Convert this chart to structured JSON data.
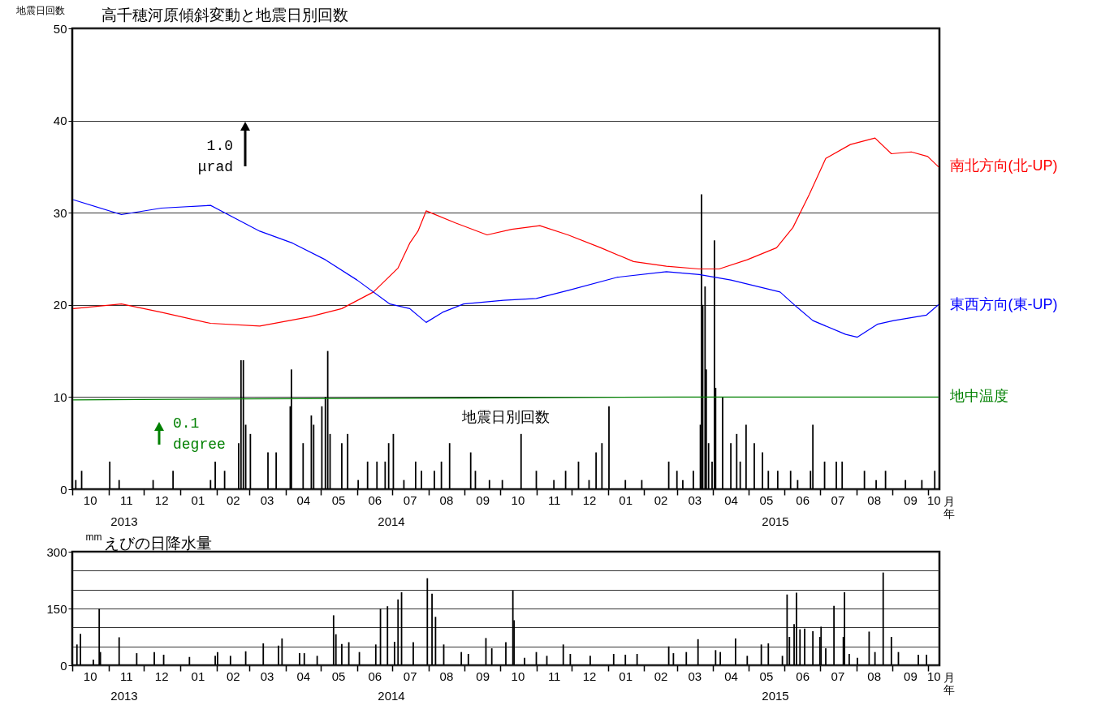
{
  "chart_data": [
    {
      "type": "line",
      "title": "高千穂河原傾斜変動と地震日別回数",
      "ylabel": "地震日回数",
      "xlabel": "月年",
      "xlim": [
        "2013-10-01",
        "2015-10-11"
      ],
      "xticks": [
        {
          "value": "2013-10-01",
          "label": null
        },
        {
          "value": "2013-11-01",
          "label": null
        },
        {
          "value": "2013-12-01",
          "label": null
        },
        {
          "value": "2014-01-01",
          "label": null
        },
        {
          "value": "2014-02-01",
          "label": null
        },
        {
          "value": "2014-03-01",
          "label": null
        },
        {
          "value": "2014-04-01",
          "label": null
        },
        {
          "value": "2014-05-01",
          "label": null
        },
        {
          "value": "2014-06-01",
          "label": null
        },
        {
          "value": "2014-07-01",
          "label": null
        },
        {
          "value": "2014-08-01",
          "label": null
        },
        {
          "value": "2014-09-01",
          "label": null
        },
        {
          "value": "2014-10-01",
          "label": null
        },
        {
          "value": "2014-11-01",
          "label": null
        },
        {
          "value": "2014-12-01",
          "label": null
        },
        {
          "value": "2015-01-01",
          "label": null
        },
        {
          "value": "2015-02-01",
          "label": null
        },
        {
          "value": "2015-03-01",
          "label": null
        },
        {
          "value": "2015-04-01",
          "label": null
        },
        {
          "value": "2015-05-01",
          "label": null
        },
        {
          "value": "2015-06-01",
          "label": null
        },
        {
          "value": "2015-07-01",
          "label": null
        },
        {
          "value": "2015-08-01",
          "label": null
        },
        {
          "value": "2015-09-01",
          "label": null
        },
        {
          "value": "2015-10-01",
          "label": null
        },
        {
          "value": "2013-10-16",
          "label": "10"
        },
        {
          "value": "2013-11-16",
          "label": "11"
        },
        {
          "value": "2013-12-16",
          "label": "12"
        },
        {
          "value": "2014-01-16",
          "label": "01"
        },
        {
          "value": "2014-02-15",
          "label": "02"
        },
        {
          "value": "2014-03-16",
          "label": "03"
        },
        {
          "value": "2014-04-16",
          "label": "04"
        },
        {
          "value": "2014-05-16",
          "label": "05"
        },
        {
          "value": "2014-06-16",
          "label": "06"
        },
        {
          "value": "2014-07-16",
          "label": "07"
        },
        {
          "value": "2014-08-16",
          "label": "08"
        },
        {
          "value": "2014-09-16",
          "label": "09"
        },
        {
          "value": "2014-10-16",
          "label": "10"
        },
        {
          "value": "2014-11-16",
          "label": "11"
        },
        {
          "value": "2014-12-16",
          "label": "12"
        },
        {
          "value": "2015-01-16",
          "label": "01"
        },
        {
          "value": "2015-02-15",
          "label": "02"
        },
        {
          "value": "2015-03-16",
          "label": "03"
        },
        {
          "value": "2015-04-16",
          "label": "04"
        },
        {
          "value": "2015-05-16",
          "label": "05"
        },
        {
          "value": "2015-06-16",
          "label": "06"
        },
        {
          "value": "2015-07-16",
          "label": "07"
        },
        {
          "value": "2015-08-16",
          "label": "08"
        },
        {
          "value": "2015-09-16",
          "label": "09"
        },
        {
          "value": "2015-10-06",
          "label": "10"
        }
      ],
      "ylim": [
        0,
        50
      ],
      "yticks": [
        0,
        10,
        20,
        30,
        40,
        50
      ],
      "grid": "y",
      "series": [
        {
          "type": "bar",
          "name": "地震日別回数",
          "color": "#000000",
          "x": [
            "2013-10-04",
            "2013-10-09",
            "2013-11-02",
            "2013-11-10",
            "2013-12-09",
            "2013-12-26",
            "2014-01-27",
            "2014-01-31",
            "2014-02-08",
            "2014-02-20",
            "2014-02-22",
            "2014-02-24",
            "2014-02-26",
            "2014-03-02",
            "2014-03-17",
            "2014-03-24",
            "2014-04-05",
            "2014-04-06",
            "2014-04-16",
            "2014-04-23",
            "2014-04-25",
            "2014-05-02",
            "2014-05-05",
            "2014-05-07",
            "2014-05-09",
            "2014-05-19",
            "2014-05-24",
            "2014-06-02",
            "2014-06-10",
            "2014-06-18",
            "2014-06-25",
            "2014-06-28",
            "2014-07-02",
            "2014-07-11",
            "2014-07-21",
            "2014-07-26",
            "2014-08-06",
            "2014-08-12",
            "2014-08-19",
            "2014-09-06",
            "2014-09-10",
            "2014-09-22",
            "2014-10-03",
            "2014-10-19",
            "2014-11-01",
            "2014-11-16",
            "2014-11-26",
            "2014-12-07",
            "2014-12-16",
            "2014-12-22",
            "2014-12-27",
            "2015-01-02",
            "2015-01-16",
            "2015-01-30",
            "2015-02-22",
            "2015-03-01",
            "2015-03-06",
            "2015-03-15",
            "2015-03-21",
            "2015-03-22",
            "2015-03-23",
            "2015-03-25",
            "2015-03-26",
            "2015-03-28",
            "2015-03-31",
            "2015-04-02",
            "2015-04-03",
            "2015-04-09",
            "2015-04-16",
            "2015-04-21",
            "2015-04-24",
            "2015-04-29",
            "2015-05-06",
            "2015-05-13",
            "2015-05-18",
            "2015-05-26",
            "2015-06-06",
            "2015-06-12",
            "2015-06-23",
            "2015-06-25",
            "2015-07-05",
            "2015-07-15",
            "2015-07-20",
            "2015-08-08",
            "2015-08-18",
            "2015-08-26",
            "2015-09-12",
            "2015-09-26",
            "2015-10-07"
          ],
          "values": [
            1,
            2,
            3,
            1,
            1,
            2,
            1,
            3,
            2,
            5,
            14,
            14,
            7,
            6,
            4,
            4,
            9,
            13,
            5,
            8,
            7,
            9,
            10,
            15,
            6,
            5,
            6,
            1,
            3,
            3,
            3,
            5,
            6,
            1,
            3,
            2,
            2,
            3,
            5,
            4,
            2,
            1,
            1,
            6,
            2,
            1,
            2,
            3,
            1,
            4,
            5,
            9,
            1,
            1,
            3,
            2,
            1,
            2,
            7,
            32,
            20,
            22,
            13,
            5,
            3,
            27,
            11,
            10,
            5,
            6,
            3,
            7,
            5,
            4,
            2,
            2,
            2,
            1,
            2,
            7,
            3,
            3,
            3,
            2,
            1,
            2,
            1,
            1,
            2
          ]
        },
        {
          "type": "line",
          "name": "南北方向(北-UP)",
          "color": "#ff0000",
          "x": [
            "2013-10-02",
            "2013-11-12",
            "2013-12-16",
            "2014-01-27",
            "2014-03-10",
            "2014-04-21",
            "2014-05-19",
            "2014-06-15",
            "2014-07-06",
            "2014-07-16",
            "2014-07-23",
            "2014-07-30",
            "2014-08-24",
            "2014-09-20",
            "2014-10-11",
            "2014-11-04",
            "2014-11-28",
            "2014-12-26",
            "2015-01-23",
            "2015-02-20",
            "2015-03-20",
            "2015-04-06",
            "2015-04-30",
            "2015-05-25",
            "2015-06-08",
            "2015-06-22",
            "2015-07-06",
            "2015-07-27",
            "2015-08-17",
            "2015-08-31",
            "2015-09-17",
            "2015-10-01",
            "2015-10-10"
          ],
          "values": [
            19.6,
            20.1,
            19.2,
            18.0,
            17.7,
            18.7,
            19.6,
            21.4,
            24.0,
            26.7,
            28.0,
            30.2,
            28.9,
            27.6,
            28.2,
            28.6,
            27.6,
            26.2,
            24.7,
            24.2,
            23.9,
            23.9,
            24.9,
            26.2,
            28.4,
            32.0,
            35.9,
            37.4,
            38.1,
            36.4,
            36.6,
            36.1,
            35.0
          ]
        },
        {
          "type": "line",
          "name": "東西方向(東-UP)",
          "color": "#0000ff",
          "x": [
            "2013-10-02",
            "2013-11-12",
            "2013-12-16",
            "2014-01-27",
            "2014-03-10",
            "2014-04-07",
            "2014-05-05",
            "2014-06-01",
            "2014-06-29",
            "2014-07-16",
            "2014-07-30",
            "2014-08-13",
            "2014-08-31",
            "2014-10-04",
            "2014-11-01",
            "2014-11-29",
            "2015-01-09",
            "2015-02-20",
            "2015-03-20",
            "2015-04-16",
            "2015-05-28",
            "2015-06-11",
            "2015-06-25",
            "2015-07-23",
            "2015-08-02",
            "2015-08-19",
            "2015-09-02",
            "2015-09-30",
            "2015-10-10"
          ],
          "values": [
            31.4,
            29.8,
            30.5,
            30.8,
            28.0,
            26.7,
            24.9,
            22.7,
            20.1,
            19.6,
            18.1,
            19.2,
            20.1,
            20.5,
            20.7,
            21.6,
            23.0,
            23.6,
            23.3,
            22.7,
            21.4,
            19.8,
            18.3,
            16.8,
            16.5,
            17.9,
            18.3,
            18.9,
            20.0
          ]
        },
        {
          "type": "line",
          "name": "地中温度",
          "color": "#008000",
          "x": [
            "2013-10-02",
            "2014-03-01",
            "2014-09-01",
            "2015-03-01",
            "2015-10-10"
          ],
          "values": [
            9.7,
            9.8,
            9.9,
            10.0,
            10.0
          ]
        }
      ],
      "annotations": [
        "1.0 μrad",
        "0.1 degree",
        "2013",
        "2014",
        "2015"
      ]
    },
    {
      "type": "bar",
      "title": "えびの日降水量",
      "ylabel": "mm",
      "xlabel": "月年",
      "color": "#000000",
      "xlim": [
        "2013-10-01",
        "2015-10-11"
      ],
      "xticks": [
        {
          "value": "2013-10-01",
          "label": null
        },
        {
          "value": "2013-11-01",
          "label": null
        },
        {
          "value": "2013-12-01",
          "label": null
        },
        {
          "value": "2014-01-01",
          "label": null
        },
        {
          "value": "2014-02-01",
          "label": null
        },
        {
          "value": "2014-03-01",
          "label": null
        },
        {
          "value": "2014-04-01",
          "label": null
        },
        {
          "value": "2014-05-01",
          "label": null
        },
        {
          "value": "2014-06-01",
          "label": null
        },
        {
          "value": "2014-07-01",
          "label": null
        },
        {
          "value": "2014-08-01",
          "label": null
        },
        {
          "value": "2014-09-01",
          "label": null
        },
        {
          "value": "2014-10-01",
          "label": null
        },
        {
          "value": "2014-11-01",
          "label": null
        },
        {
          "value": "2014-12-01",
          "label": null
        },
        {
          "value": "2015-01-01",
          "label": null
        },
        {
          "value": "2015-02-01",
          "label": null
        },
        {
          "value": "2015-03-01",
          "label": null
        },
        {
          "value": "2015-04-01",
          "label": null
        },
        {
          "value": "2015-05-01",
          "label": null
        },
        {
          "value": "2015-06-01",
          "label": null
        },
        {
          "value": "2015-07-01",
          "label": null
        },
        {
          "value": "2015-08-01",
          "label": null
        },
        {
          "value": "2015-09-01",
          "label": null
        },
        {
          "value": "2015-10-01",
          "label": null
        },
        {
          "value": "2013-10-16",
          "label": "10"
        },
        {
          "value": "2013-11-16",
          "label": "11"
        },
        {
          "value": "2013-12-16",
          "label": "12"
        },
        {
          "value": "2014-01-16",
          "label": "01"
        },
        {
          "value": "2014-02-15",
          "label": "02"
        },
        {
          "value": "2014-03-16",
          "label": "03"
        },
        {
          "value": "2014-04-16",
          "label": "04"
        },
        {
          "value": "2014-05-16",
          "label": "05"
        },
        {
          "value": "2014-06-16",
          "label": "06"
        },
        {
          "value": "2014-07-16",
          "label": "07"
        },
        {
          "value": "2014-08-16",
          "label": "08"
        },
        {
          "value": "2014-09-16",
          "label": "09"
        },
        {
          "value": "2014-10-16",
          "label": "10"
        },
        {
          "value": "2014-11-16",
          "label": "11"
        },
        {
          "value": "2014-12-16",
          "label": "12"
        },
        {
          "value": "2015-01-16",
          "label": "01"
        },
        {
          "value": "2015-02-15",
          "label": "02"
        },
        {
          "value": "2015-03-16",
          "label": "03"
        },
        {
          "value": "2015-04-16",
          "label": "04"
        },
        {
          "value": "2015-05-16",
          "label": "05"
        },
        {
          "value": "2015-06-16",
          "label": "06"
        },
        {
          "value": "2015-07-16",
          "label": "07"
        },
        {
          "value": "2015-08-16",
          "label": "08"
        },
        {
          "value": "2015-09-16",
          "label": "09"
        },
        {
          "value": "2015-10-06",
          "label": "10"
        }
      ],
      "annotations": [
        "2013",
        "2014",
        "2015"
      ],
      "ylim": [
        0,
        300
      ],
      "yticks": [
        0,
        {
          "value": 50,
          "label": null
        },
        {
          "value": 100,
          "label": null
        },
        150,
        {
          "value": 200,
          "label": null
        },
        {
          "value": 250,
          "label": null
        },
        300
      ],
      "grid": "y",
      "x": [
        "2013-10-05",
        "2013-10-08",
        "2013-10-19",
        "2013-10-24",
        "2013-10-25",
        "2013-11-10",
        "2013-11-25",
        "2013-12-10",
        "2013-12-18",
        "2014-01-09",
        "2014-01-31",
        "2014-02-02",
        "2014-02-13",
        "2014-02-26",
        "2014-03-13",
        "2014-03-26",
        "2014-03-29",
        "2014-04-13",
        "2014-04-17",
        "2014-04-28",
        "2014-05-12",
        "2014-05-14",
        "2014-05-19",
        "2014-05-25",
        "2014-06-03",
        "2014-06-17",
        "2014-06-21",
        "2014-06-27",
        "2014-07-03",
        "2014-07-06",
        "2014-07-09",
        "2014-07-19",
        "2014-07-31",
        "2014-08-04",
        "2014-08-07",
        "2014-08-14",
        "2014-08-29",
        "2014-09-04",
        "2014-09-19",
        "2014-09-24",
        "2014-10-06",
        "2014-10-12",
        "2014-10-13",
        "2014-10-22",
        "2014-11-01",
        "2014-11-10",
        "2014-11-24",
        "2014-11-30",
        "2014-12-17",
        "2015-01-06",
        "2015-01-16",
        "2015-01-26",
        "2015-02-22",
        "2015-02-26",
        "2015-03-09",
        "2015-03-19",
        "2015-04-03",
        "2015-04-07",
        "2015-04-20",
        "2015-04-30",
        "2015-05-12",
        "2015-05-18",
        "2015-05-30",
        "2015-06-03",
        "2015-06-05",
        "2015-06-09",
        "2015-06-11",
        "2015-06-14",
        "2015-06-18",
        "2015-06-25",
        "2015-07-01",
        "2015-07-02",
        "2015-07-06",
        "2015-07-13",
        "2015-07-21",
        "2015-07-22",
        "2015-07-26",
        "2015-08-02",
        "2015-08-12",
        "2015-08-17",
        "2015-08-24",
        "2015-08-31",
        "2015-09-06",
        "2015-09-23",
        "2015-09-30"
      ],
      "values": [
        55,
        83,
        15,
        150,
        35,
        74,
        32,
        35,
        28,
        22,
        25,
        35,
        25,
        37,
        58,
        52,
        71,
        32,
        32,
        25,
        132,
        82,
        56,
        61,
        35,
        55,
        150,
        156,
        62,
        174,
        193,
        61,
        230,
        189,
        128,
        55,
        35,
        30,
        72,
        45,
        61,
        197,
        119,
        20,
        35,
        25,
        55,
        30,
        25,
        30,
        28,
        30,
        50,
        32,
        35,
        69,
        40,
        35,
        71,
        25,
        55,
        58,
        25,
        187,
        75,
        109,
        192,
        95,
        97,
        90,
        75,
        102,
        45,
        157,
        75,
        193,
        30,
        20,
        89,
        35,
        245,
        75,
        35,
        28,
        28
      ]
    }
  ]
}
